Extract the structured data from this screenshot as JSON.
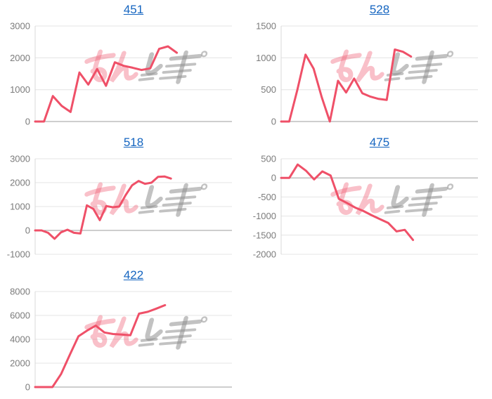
{
  "page": {
    "background": "#ffffff",
    "columns": 2,
    "rows": 3
  },
  "style": {
    "line_color": "#ef5068",
    "title_color": "#1565c0",
    "tick_color": "#7b7b7b",
    "grid_color": "#e4e4e4",
    "zero_line_color": "#9e9e9e",
    "axis_line_color": "#d9d9d9"
  },
  "watermark": {
    "icon": "minrepo-logo-watermark",
    "pink_color": "#ef5068",
    "gray_color": "#8f8f8f",
    "pink_opacity": 0.36,
    "gray_opacity": 0.55
  },
  "chart_data": [
    {
      "type": "line",
      "title": "451",
      "ylim": [
        0,
        3000
      ],
      "yticks": [
        3000,
        2000,
        1000,
        0
      ],
      "x_extent": 0.72,
      "grid": "horizontal",
      "legend_position": "none",
      "values": [
        0,
        0,
        800,
        490,
        300,
        1540,
        1160,
        1650,
        1120,
        1860,
        1750,
        1690,
        1620,
        1670,
        2280,
        2360,
        2160
      ]
    },
    {
      "type": "line",
      "title": "528",
      "ylim": [
        0,
        1500
      ],
      "yticks": [
        1500,
        1000,
        500,
        0
      ],
      "x_extent": 0.66,
      "grid": "horizontal",
      "legend_position": "none",
      "values": [
        0,
        0,
        500,
        1050,
        830,
        380,
        0,
        640,
        455,
        675,
        445,
        390,
        355,
        340,
        1130,
        1095,
        1020
      ]
    },
    {
      "type": "line",
      "title": "518",
      "ylim": [
        -1000,
        3000
      ],
      "yticks": [
        3000,
        2000,
        1000,
        0,
        -1000
      ],
      "x_extent": 0.69,
      "grid": "horizontal",
      "legend_position": "none",
      "values": [
        0,
        0,
        -100,
        -350,
        -80,
        30,
        -100,
        -130,
        1050,
        900,
        430,
        1020,
        970,
        1000,
        1480,
        1890,
        2070,
        1950,
        2000,
        2240,
        2260,
        2170
      ]
    },
    {
      "type": "line",
      "title": "475",
      "ylim": [
        -2000,
        500
      ],
      "yticks": [
        500,
        0,
        -500,
        -1000,
        -1500,
        -2000
      ],
      "x_extent": 0.67,
      "grid": "horizontal",
      "legend_position": "none",
      "values": [
        0,
        0,
        350,
        190,
        -40,
        170,
        60,
        -550,
        -660,
        -780,
        -870,
        -980,
        -1080,
        -1180,
        -1400,
        -1360,
        -1625
      ]
    },
    {
      "type": "line",
      "title": "422",
      "ylim": [
        0,
        8000
      ],
      "yticks": [
        8000,
        6000,
        4000,
        2000,
        0
      ],
      "x_extent": 0.66,
      "grid": "horizontal",
      "legend_position": "none",
      "values": [
        0,
        0,
        0,
        1100,
        2700,
        4250,
        4730,
        5140,
        4570,
        4440,
        4400,
        4340,
        6150,
        6300,
        6570,
        6860
      ]
    }
  ]
}
